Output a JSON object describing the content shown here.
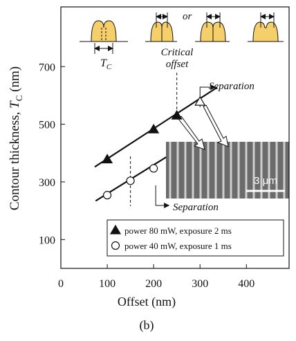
{
  "chart_data": {
    "type": "scatter",
    "x_label": "Offset (nm)",
    "y_label": {
      "text": "Contour thickness, ",
      "symbol": "T",
      "subscript": "C",
      "unit": " (nm)"
    },
    "xlim": [
      0,
      492
    ],
    "ylim": [
      0,
      907
    ],
    "xticks": [
      0,
      100,
      200,
      300,
      400
    ],
    "yticks": [
      100,
      300,
      500,
      700
    ],
    "series": [
      {
        "name": "power 80 mW, exposure 2 ms",
        "marker": "triangle",
        "color": "#111111",
        "x": [
          100,
          200,
          250,
          300
        ],
        "values": [
          378,
          482,
          530,
          578
        ],
        "fill": [
          "filled",
          "filled",
          "filled",
          "open"
        ],
        "fit": {
          "x": [
            73,
            337
          ],
          "values": [
            352,
            628
          ]
        }
      },
      {
        "name": "power 40 mW, exposure 1 ms",
        "marker": "circle",
        "color": "#111111",
        "x": [
          100,
          150,
          200
        ],
        "values": [
          254,
          304,
          347
        ],
        "fill": [
          "open",
          "open",
          "open"
        ],
        "fit": {
          "x": [
            75,
            227
          ],
          "values": [
            234,
            386
          ]
        }
      }
    ],
    "dashed_x": [
      250,
      150
    ],
    "annotations": {
      "critical": [
        "Critical",
        "offset"
      ],
      "separation_upper": "Separation",
      "separation_lower": "Separation",
      "or": "or",
      "tc_symbol": "T",
      "tc_subscript": "C",
      "scale": "3 μm"
    },
    "caption": "(b)"
  }
}
